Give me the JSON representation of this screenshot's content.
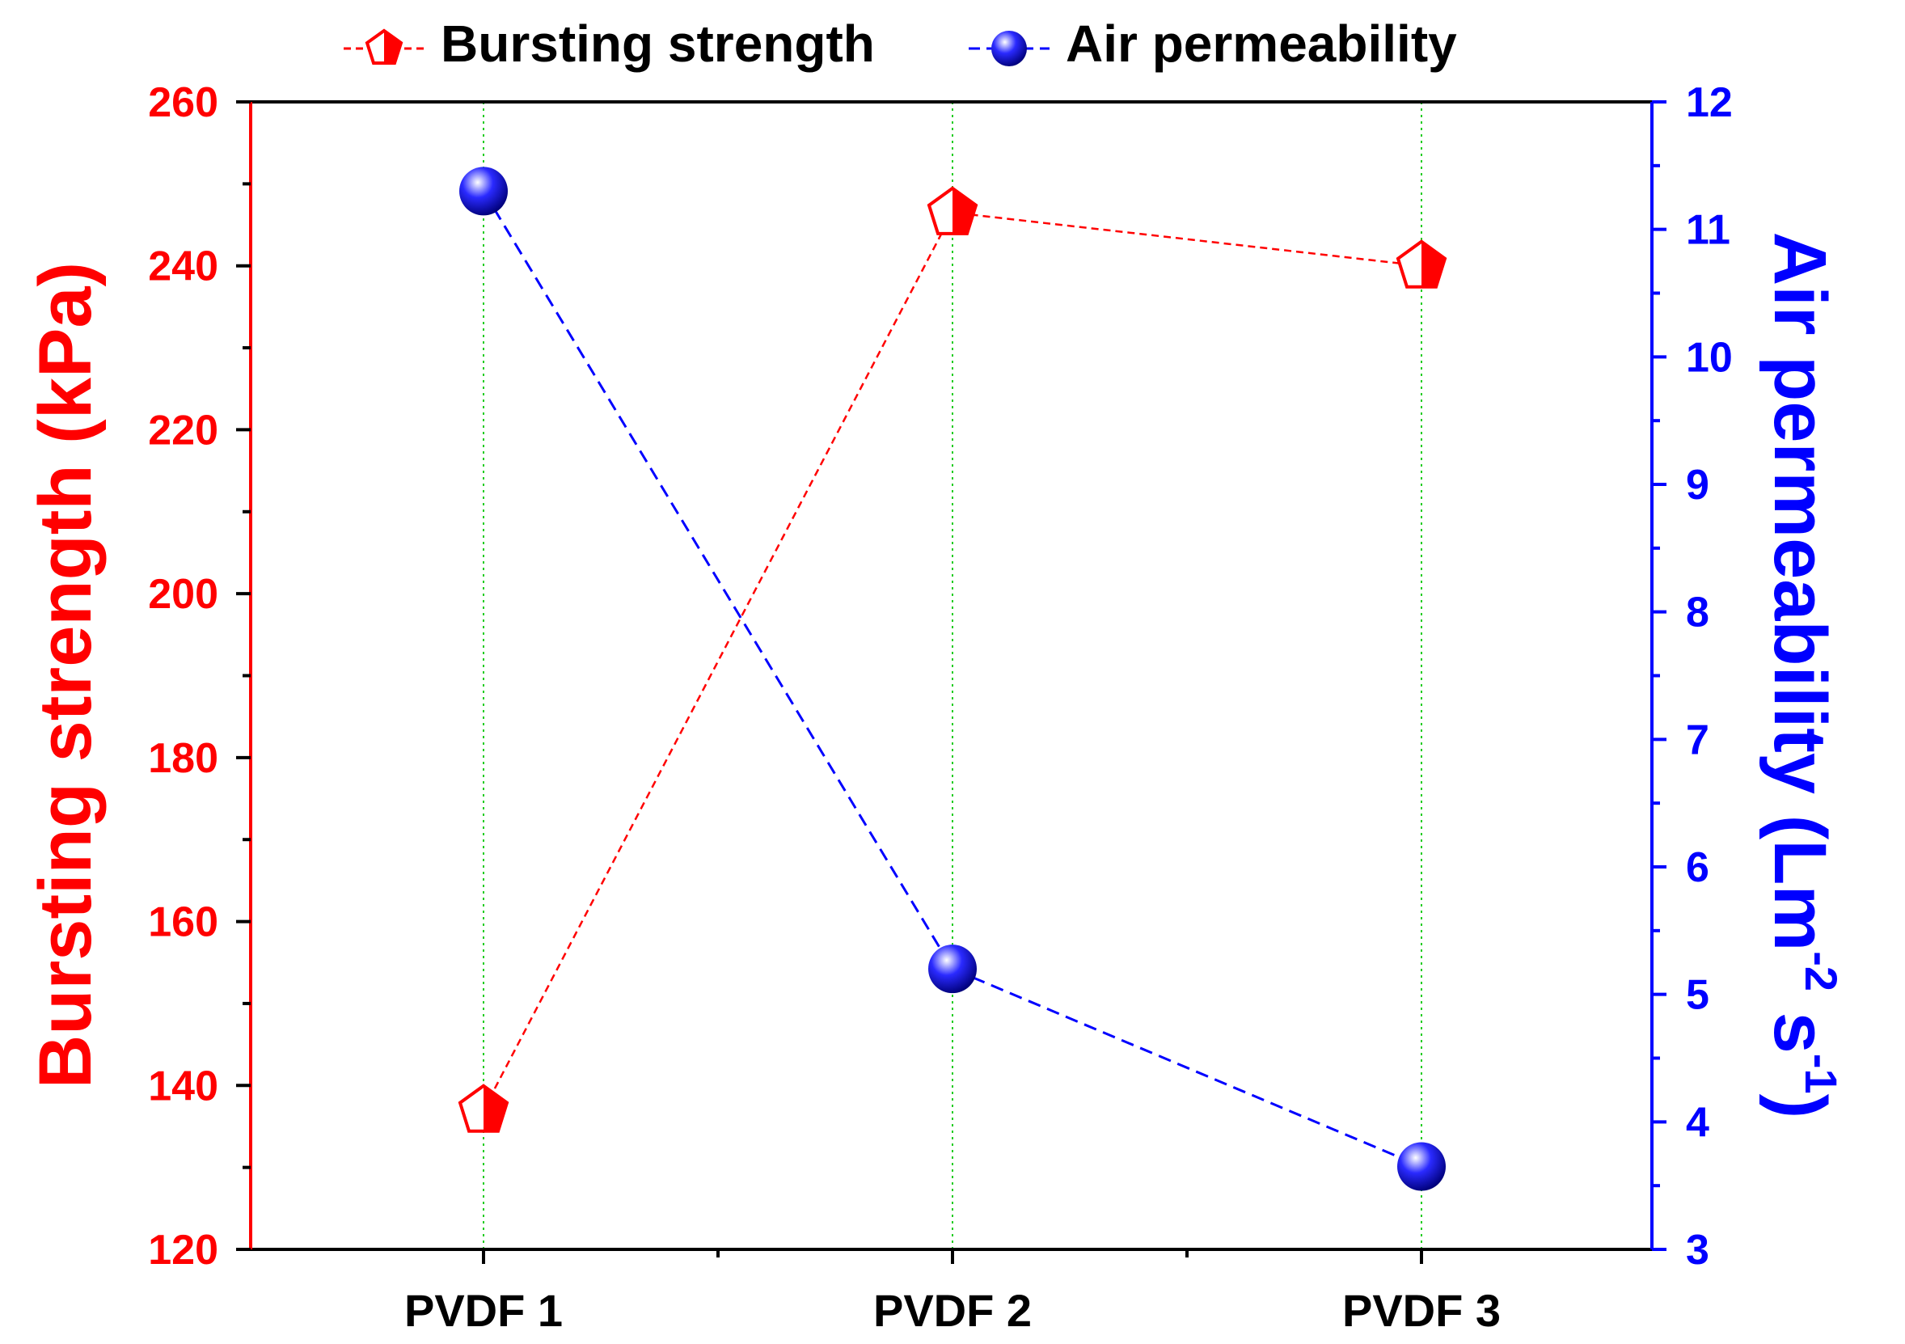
{
  "chart_data": {
    "type": "line",
    "categories": [
      "PVDF 1",
      "PVDF 2",
      "PVDF 3"
    ],
    "series": [
      {
        "name": "Bursting strength",
        "axis": "left",
        "values": [
          137,
          246.5,
          240
        ],
        "color": "#ff0000",
        "marker": "half-filled-pentagon",
        "line_style": "dashed"
      },
      {
        "name": "Air permeability",
        "axis": "right",
        "values": [
          11.3,
          5.2,
          3.65
        ],
        "color": "#0000ff",
        "marker": "sphere",
        "line_style": "dashed"
      }
    ],
    "y_left": {
      "label": "Bursting strength (kPa)",
      "min": 120,
      "max": 260,
      "ticks": [
        "120",
        "140",
        "160",
        "180",
        "200",
        "220",
        "240",
        "260"
      ],
      "color": "#ff0000"
    },
    "y_right": {
      "label_main": "Air permeability (Lm",
      "label_sup1": "-2",
      "label_mid": " s",
      "label_sup2": "-1",
      "label_end": ")",
      "min": 3,
      "max": 12,
      "ticks": [
        "3",
        "4",
        "5",
        "6",
        "7",
        "8",
        "9",
        "10",
        "11",
        "12"
      ],
      "color": "#0000ff"
    },
    "grid": "vertical-dotted-at-categories",
    "grid_color": "#22cc22",
    "legend": {
      "position": "top-center",
      "items": [
        "Bursting strength",
        "Air permeability"
      ]
    }
  }
}
